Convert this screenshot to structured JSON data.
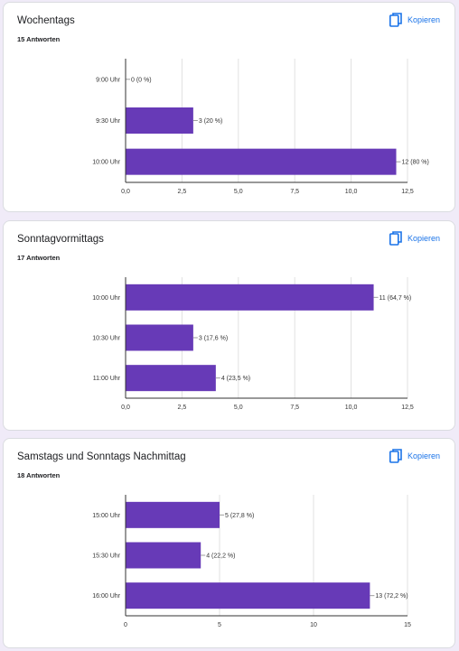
{
  "colors": {
    "bar": "#673ab7",
    "copy": "#1a73e8",
    "grid": "#e0e0e0",
    "axis": "#333333"
  },
  "cards": [
    {
      "title": "Wochentags",
      "responses": "15 Antworten",
      "copy_label": "Kopieren",
      "copy_icon": "copy-icon"
    },
    {
      "title": "Sonntagvormittags",
      "responses": "17 Antworten",
      "copy_label": "Kopieren",
      "copy_icon": "copy-icon"
    },
    {
      "title": "Samstags und Sonntags Nachmittag",
      "responses": "18 Antworten",
      "copy_label": "Kopieren",
      "copy_icon": "copy-icon"
    }
  ],
  "chart_data": [
    {
      "type": "bar",
      "orientation": "horizontal",
      "categories": [
        "9:00 Uhr",
        "9:30 Uhr",
        "10:00 Uhr"
      ],
      "values": [
        0,
        3,
        12
      ],
      "labels": [
        "0 (0 %)",
        "3 (20 %)",
        "12 (80 %)"
      ],
      "xlim": [
        0,
        12.5
      ],
      "xticks": [
        0,
        2.5,
        5,
        7.5,
        10,
        12.5
      ],
      "xtick_labels": [
        "0,0",
        "2,5",
        "5,0",
        "7,5",
        "10,0",
        "12,5"
      ],
      "grid": true
    },
    {
      "type": "bar",
      "orientation": "horizontal",
      "categories": [
        "10:00 Uhr",
        "10:30 Uhr",
        "11:00 Uhr"
      ],
      "values": [
        11,
        3,
        4
      ],
      "labels": [
        "11 (64,7 %)",
        "3 (17,6 %)",
        "4 (23,5 %)"
      ],
      "xlim": [
        0,
        12.5
      ],
      "xticks": [
        0,
        2.5,
        5,
        7.5,
        10,
        12.5
      ],
      "xtick_labels": [
        "0,0",
        "2,5",
        "5,0",
        "7,5",
        "10,0",
        "12,5"
      ],
      "grid": true
    },
    {
      "type": "bar",
      "orientation": "horizontal",
      "categories": [
        "15:00 Uhr",
        "15:30 Uhr",
        "16:00 Uhr"
      ],
      "values": [
        5,
        4,
        13
      ],
      "labels": [
        "5 (27,8 %)",
        "4 (22,2 %)",
        "13 (72,2 %)"
      ],
      "xlim": [
        0,
        15
      ],
      "xticks": [
        0,
        5,
        10,
        15
      ],
      "xtick_labels": [
        "0",
        "5",
        "10",
        "15"
      ],
      "grid": true
    }
  ]
}
